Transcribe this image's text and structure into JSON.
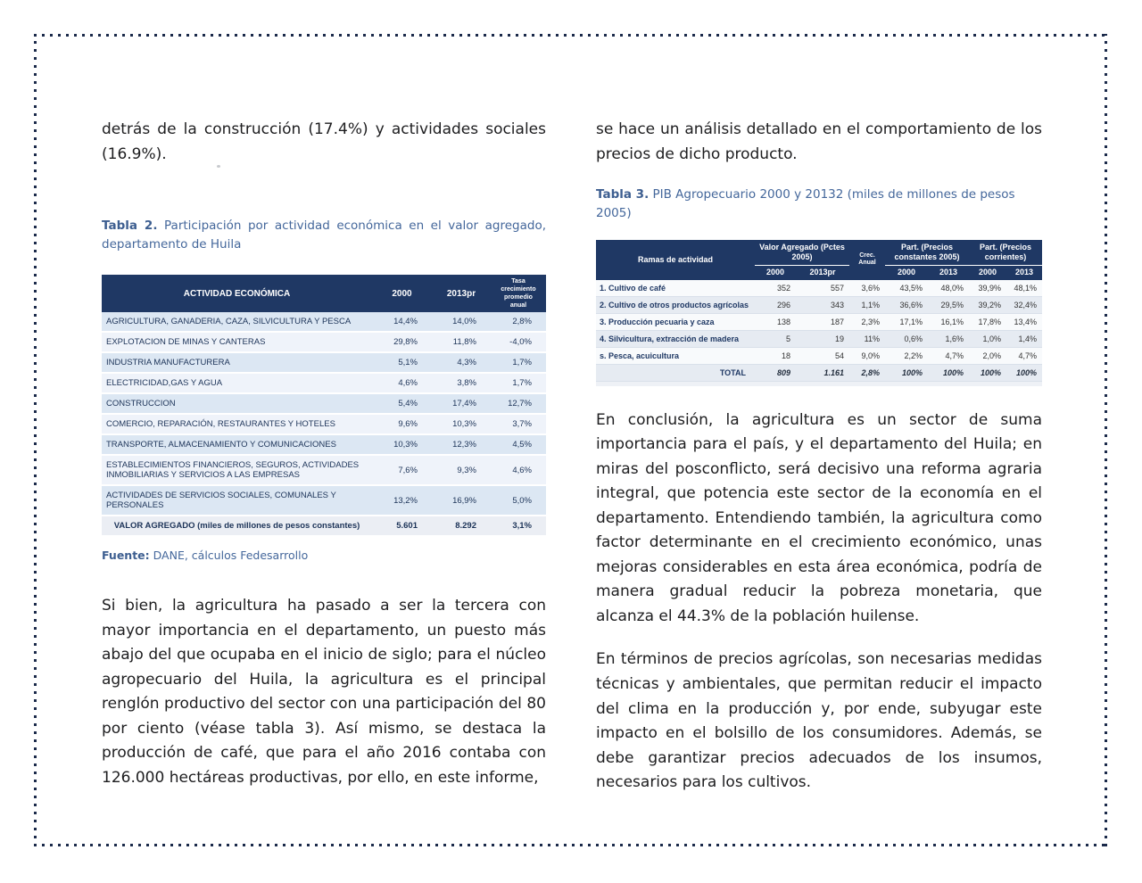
{
  "colors": {
    "border_navy": "#1b2a4a",
    "table_header_bg": "#1f3864",
    "table_header_text": "#ffffff",
    "accent_steel_blue": "#44679b",
    "row_light_blue": "#dce7f3",
    "row_lighter": "#eff3fa",
    "body_text": "#1d1d1f"
  },
  "left_column": {
    "intro_paragraph": "detrás de la construcción (17.4%) y actividades sociales (16.9%).",
    "table2": {
      "title_label": "Tabla 2.",
      "title_text": "Participación por actividad económica en el valor agregado, departamento de Huila",
      "col_headers": {
        "activity": "ACTIVIDAD ECONÓMICA",
        "y2000": "2000",
        "y2013": "2013pr",
        "growth": "Tasa crecimiento promedio anual"
      },
      "rows": [
        {
          "label": "AGRICULTURA, GANADERIA, CAZA, SILVICULTURA Y PESCA",
          "y2000": "14,4%",
          "y2013": "14,0%",
          "growth": "2,8%"
        },
        {
          "label": "EXPLOTACION DE MINAS Y CANTERAS",
          "y2000": "29,8%",
          "y2013": "11,8%",
          "growth": "-4,0%"
        },
        {
          "label": "INDUSTRIA  MANUFACTURERA",
          "y2000": "5,1%",
          "y2013": "4,3%",
          "growth": "1,7%"
        },
        {
          "label": "ELECTRICIDAD,GAS Y AGUA",
          "y2000": "4,6%",
          "y2013": "3,8%",
          "growth": "1,7%"
        },
        {
          "label": "CONSTRUCCION",
          "y2000": "5,4%",
          "y2013": "17,4%",
          "growth": "12,7%"
        },
        {
          "label": "COMERCIO, REPARACIÓN, RESTAURANTES Y HOTELES",
          "y2000": "9,6%",
          "y2013": "10,3%",
          "growth": "3,7%"
        },
        {
          "label": "TRANSPORTE, ALMACENAMIENTO Y COMUNICACIONES",
          "y2000": "10,3%",
          "y2013": "12,3%",
          "growth": "4,5%"
        },
        {
          "label": "ESTABLECIMIENTOS FINANCIEROS, SEGUROS, ACTIVIDADES INMOBILIARIAS Y SERVICIOS A LAS EMPRESAS",
          "y2000": "7,6%",
          "y2013": "9,3%",
          "growth": "4,6%"
        },
        {
          "label": "ACTIVIDADES DE SERVICIOS SOCIALES, COMUNALES Y PERSONALES",
          "y2000": "13,2%",
          "y2013": "16,9%",
          "growth": "5,0%"
        }
      ],
      "total_row": {
        "label": "VALOR AGREGADO (miles de millones de pesos constantes)",
        "y2000": "5.601",
        "y2013": "8.292",
        "growth": "3,1%"
      },
      "source_label": "Fuente:",
      "source_text": "DANE, cálculos Fedesarrollo"
    },
    "body_paragraph": "Si bien, la agricultura ha pasado a ser la tercera con mayor importancia en el departamento, un puesto más abajo del que ocupaba en el inicio de siglo; para el núcleo agropecuario del Huila, la agricultura es el principal renglón productivo del sector con una participación del 80 por ciento (véase tabla 3). Así mismo, se destaca la producción de café, que para el año 2016 contaba con 126.000 hectáreas productivas, por ello, en este informe,"
  },
  "right_column": {
    "intro_paragraph": "se hace un análisis detallado en el comportamiento de los precios de dicho producto.",
    "table3": {
      "title_label": "Tabla 3.",
      "title_text": "PIB Agropecuario 2000 y 20132 (miles de millones de pesos 2005)",
      "headers": {
        "ramas": "Ramas de actividad",
        "valor_agregado": "Valor Agregado (Pctes 2005)",
        "crec_anual": "Crec. Anual",
        "part_constantes": "Part. (Precios constantes 2005)",
        "part_corrientes": "Part. (Precios corrientes)",
        "sub": [
          "2000",
          "2013pr",
          "2000",
          "2013",
          "2000",
          "2013"
        ]
      },
      "rows": [
        {
          "label": "1. Cultivo de café",
          "va2000": "352",
          "va2013": "557",
          "crec": "3,6%",
          "pc2000": "43,5%",
          "pc2013": "48,0%",
          "pr2000": "39,9%",
          "pr2013": "48,1%"
        },
        {
          "label": "2. Cultivo de otros productos agrícolas",
          "va2000": "296",
          "va2013": "343",
          "crec": "1,1%",
          "pc2000": "36,6%",
          "pc2013": "29,5%",
          "pr2000": "39,2%",
          "pr2013": "32,4%"
        },
        {
          "label": "3. Producción pecuaria y caza",
          "va2000": "138",
          "va2013": "187",
          "crec": "2,3%",
          "pc2000": "17,1%",
          "pc2013": "16,1%",
          "pr2000": "17,8%",
          "pr2013": "13,4%"
        },
        {
          "label": "4. Silvicultura, extracción de madera",
          "va2000": "5",
          "va2013": "19",
          "crec": "11%",
          "pc2000": "0,6%",
          "pc2013": "1,6%",
          "pr2000": "1,0%",
          "pr2013": "1,4%"
        },
        {
          "label": "s. Pesca, acuicultura",
          "va2000": "18",
          "va2013": "54",
          "crec": "9,0%",
          "pc2000": "2,2%",
          "pc2013": "4,7%",
          "pr2000": "2,0%",
          "pr2013": "4,7%"
        }
      ],
      "total_row": {
        "label": "TOTAL",
        "va2000": "809",
        "va2013": "1.161",
        "crec": "2,8%",
        "pc2000": "100%",
        "pc2013": "100%",
        "pr2000": "100%",
        "pr2013": "100%"
      }
    },
    "paragraph1": "En conclusión, la agricultura es un sector de suma importancia para el país, y el departamento del Huila; en miras del posconflicto, será decisivo una reforma agraria integral, que potencia este sector de la economía en el departamento. Entendiendo también, la agricultura como factor determinante en el crecimiento económico, unas mejoras considerables en esta área económica, podría de manera gradual reducir la pobreza monetaria, que alcanza el 44.3% de la población huilense.",
    "paragraph2": "En términos de precios agrícolas, son necesarias medidas técnicas y ambientales, que permitan reducir el impacto del clima en la producción y, por ende, subyugar este impacto en el bolsillo de los consumidores. Además, se debe garantizar precios adecuados de los insumos, necesarios para los cultivos."
  }
}
